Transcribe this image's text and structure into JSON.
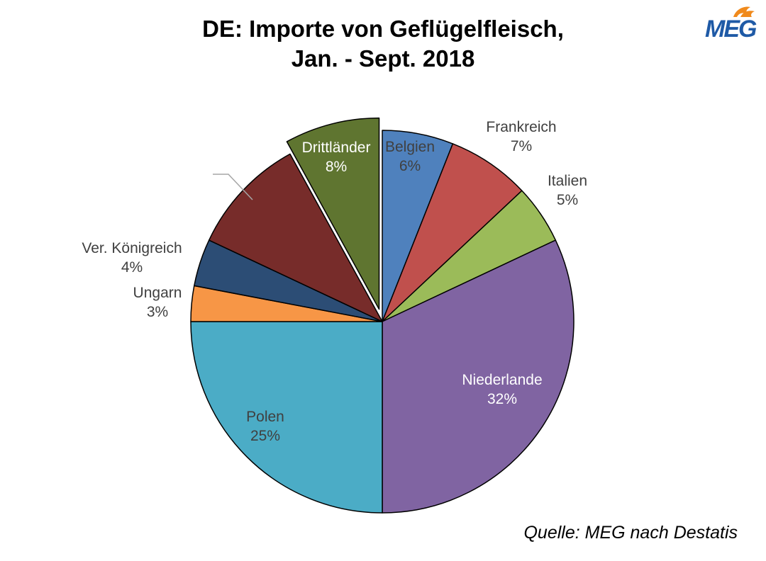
{
  "title_line1": "DE: Importe von Geflügelfleisch,",
  "title_line2": "Jan. - Sept. 2018",
  "source": "Quelle: MEG nach Destatis",
  "logo_text": "MEG",
  "colors": {
    "Belgien": "#4f81bd",
    "Frankreich": "#c0504d",
    "Italien": "#9bbb59",
    "Niederlande": "#8064a2",
    "Polen": "#4bacc6",
    "Ungarn": "#f79646",
    "Ver. Königreich": "#2c4d75",
    "unlabeled": "#772c2a",
    "Drittländer": "#5f7530",
    "logo_blue": "#1f5aa6",
    "logo_orange": "#f08a1c"
  },
  "chart_data": {
    "type": "pie",
    "title": "DE: Importe von Geflügelfleisch, Jan. - Sept. 2018",
    "slices": [
      {
        "label": "Belgien",
        "value": 6,
        "display": "6%"
      },
      {
        "label": "Frankreich",
        "value": 7,
        "display": "7%"
      },
      {
        "label": "Italien",
        "value": 5,
        "display": "5%"
      },
      {
        "label": "Niederlande",
        "value": 32,
        "display": "32%"
      },
      {
        "label": "Polen",
        "value": 25,
        "display": "25%"
      },
      {
        "label": "Ungarn",
        "value": 3,
        "display": "3%"
      },
      {
        "label": "Ver. Königreich",
        "value": 4,
        "display": "4%"
      },
      {
        "label": "",
        "value": 10,
        "display": ""
      },
      {
        "label": "Drittländer",
        "value": 8,
        "display": "8%",
        "exploded": true
      }
    ]
  }
}
